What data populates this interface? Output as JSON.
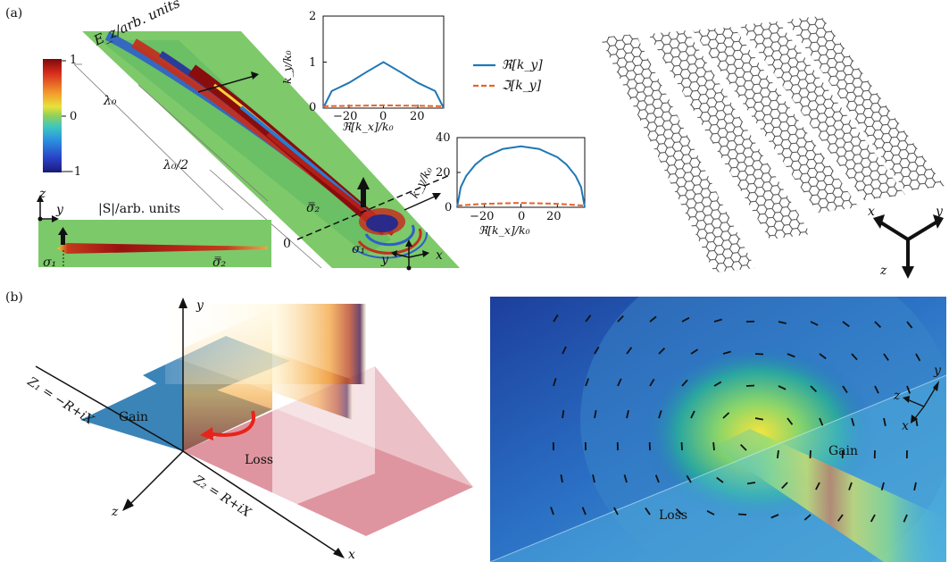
{
  "panel_labels": {
    "a": "(a)",
    "b": "(b)"
  },
  "panel_a": {
    "field_label": "E_z/arb. units",
    "colorbar_ticks": [
      "1",
      "0",
      "−1"
    ],
    "wavelength_labels": [
      "λ₀",
      "λ₀/2",
      "0"
    ],
    "poynting_label": "|S|/arb. units",
    "sigma_labels": {
      "sigma1": "σ₁",
      "sigma2": "σ̿₂"
    },
    "axes": {
      "z": "z",
      "y": "y",
      "x": "x"
    },
    "legend": {
      "real": "ℜ[k_y]",
      "imag": "ℑ[k_y]"
    },
    "graphene_axes": {
      "x": "x",
      "y": "y",
      "z": "z"
    }
  },
  "panel_b": {
    "axes": {
      "x": "x",
      "y": "y",
      "z": "z"
    },
    "gain_label": "Gain",
    "loss_label": "Loss",
    "z1_label": "Z₁ = −R+iX",
    "z2_label": "Z₂ = R+iX",
    "sim_gain_label": "Gain",
    "sim_loss_label": "Loss",
    "sim_axes": {
      "x": "x",
      "y": "y",
      "z": "z"
    }
  },
  "chart_data": [
    {
      "type": "line",
      "title": "",
      "xlabel": "ℜ[k_x]/k₀",
      "ylabel": "k_y/k₀",
      "xlim": [
        -35,
        35
      ],
      "ylim": [
        0,
        2
      ],
      "xticks": [
        "−20",
        "0",
        "20"
      ],
      "yticks": [
        "0",
        "1",
        "2"
      ],
      "series": [
        {
          "name": "ℜ[k_y]",
          "color": "#1f77b4",
          "style": "solid",
          "x": [
            -35,
            -30,
            -20,
            -10,
            0,
            10,
            20,
            30,
            35
          ],
          "y": [
            0,
            0.37,
            0.55,
            0.78,
            1.0,
            0.78,
            0.55,
            0.37,
            0
          ]
        },
        {
          "name": "ℑ[k_y]",
          "color": "#e8632b",
          "style": "dashed",
          "x": [
            -35,
            -20,
            0,
            20,
            35
          ],
          "y": [
            0.04,
            0.05,
            0.06,
            0.05,
            0.04
          ]
        }
      ]
    },
    {
      "type": "line",
      "title": "",
      "xlabel": "ℜ[k_x]/k₀",
      "ylabel": "k_y/k₀",
      "xlim": [
        -35,
        35
      ],
      "ylim": [
        0,
        40
      ],
      "xticks": [
        "−20",
        "0",
        "20"
      ],
      "yticks": [
        "0",
        "20",
        "40"
      ],
      "series": [
        {
          "name": "ℜ[k_y]",
          "color": "#1f77b4",
          "style": "solid",
          "x": [
            -35,
            -33,
            -30,
            -25,
            -20,
            -10,
            0,
            10,
            20,
            25,
            30,
            33,
            35
          ],
          "y": [
            0,
            11.6,
            18,
            24.5,
            28.7,
            33.5,
            35,
            33.5,
            28.7,
            24.5,
            18,
            11.6,
            0
          ]
        },
        {
          "name": "ℑ[k_y]",
          "color": "#e8632b",
          "style": "dashed",
          "x": [
            -35,
            -20,
            0,
            20,
            35
          ],
          "y": [
            1,
            2,
            2.5,
            2,
            1
          ]
        }
      ]
    }
  ]
}
